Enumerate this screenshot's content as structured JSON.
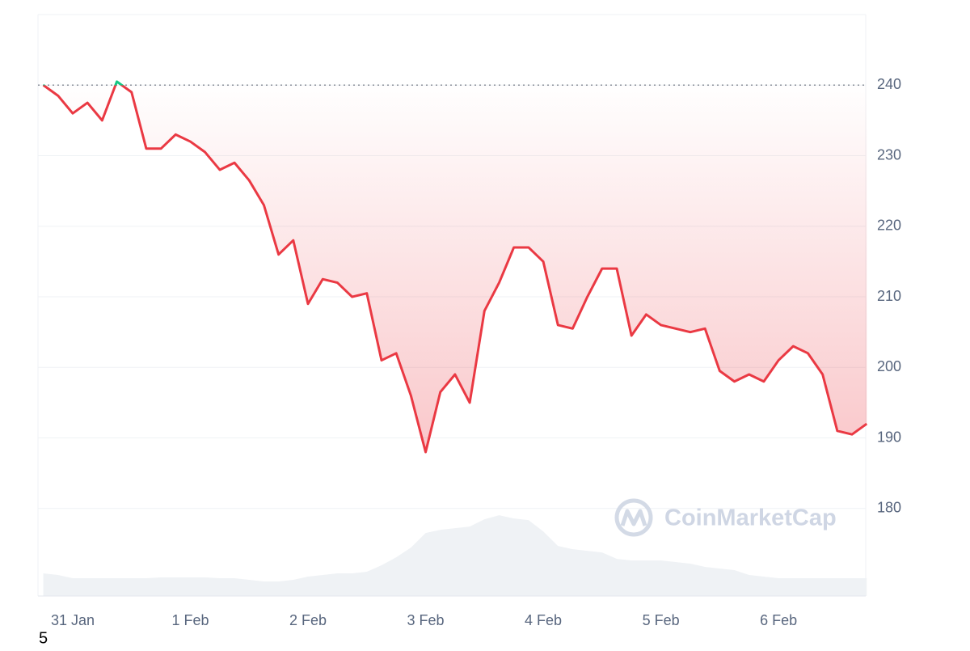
{
  "chart_data": {
    "type": "line",
    "categories": [
      null,
      null,
      "31 Jan",
      null,
      null,
      null,
      null,
      null,
      null,
      null,
      "1 Feb",
      null,
      null,
      null,
      null,
      null,
      null,
      null,
      "2 Feb",
      null,
      null,
      null,
      null,
      null,
      null,
      null,
      "3 Feb",
      null,
      null,
      null,
      null,
      null,
      null,
      null,
      "4 Feb",
      null,
      null,
      null,
      null,
      null,
      null,
      null,
      "5 Feb",
      null,
      null,
      null,
      null,
      null,
      null,
      null,
      "6 Feb",
      null,
      null,
      null,
      null,
      null,
      null
    ],
    "series": [
      {
        "name": "Price",
        "color": "#ea3943",
        "color_above": "#16c784",
        "values": [
          240,
          238.5,
          236,
          237.5,
          235,
          240.5,
          239,
          231,
          231,
          233,
          232,
          230.5,
          228,
          229,
          226.5,
          223,
          216,
          218,
          209,
          212.5,
          212,
          210,
          210.5,
          201,
          202,
          196,
          188,
          196.5,
          199,
          195,
          208,
          212,
          217,
          217,
          215,
          206,
          205.5,
          210,
          214,
          214,
          204.5,
          207.5,
          206,
          205.5,
          205,
          205.5,
          199.5,
          198,
          199,
          198,
          201,
          203,
          202,
          199,
          191,
          190.5,
          192
        ]
      },
      {
        "name": "Volume",
        "color": "#eff2f5",
        "axis": "y2",
        "values": [
          28,
          26,
          22,
          22,
          22,
          22,
          22,
          22,
          23,
          23,
          23,
          23,
          22,
          22,
          20,
          18,
          18,
          20,
          24,
          26,
          28,
          28,
          30,
          38,
          48,
          60,
          78,
          82,
          84,
          86,
          95,
          100,
          96,
          94,
          80,
          62,
          58,
          56,
          54,
          46,
          44,
          44,
          44,
          42,
          40,
          36,
          34,
          32,
          26,
          24,
          22,
          22,
          22,
          22,
          22,
          22,
          22
        ]
      }
    ],
    "baseline": 240,
    "ylim": [
      167.6,
      250
    ],
    "yticks": [
      180,
      190,
      200,
      210,
      220,
      230,
      240
    ],
    "y2lim": [
      0,
      720
    ],
    "grid": true,
    "watermark": "CoinMarketCap",
    "footer": "5"
  }
}
